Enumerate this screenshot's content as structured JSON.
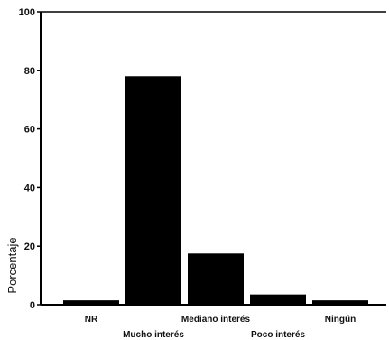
{
  "chart_data": {
    "type": "bar",
    "title": "",
    "xlabel": "",
    "ylabel": "Porcentaje",
    "ylim": [
      0,
      100
    ],
    "yticks": [
      0,
      20,
      40,
      60,
      80,
      100
    ],
    "grid": false,
    "categories": [
      "NR",
      "Mucho interés",
      "Mediano interés",
      "Poco interés",
      "Ningún"
    ],
    "values": [
      1.5,
      78,
      17.5,
      3.5,
      1.5
    ],
    "bar_color": "#000000"
  }
}
